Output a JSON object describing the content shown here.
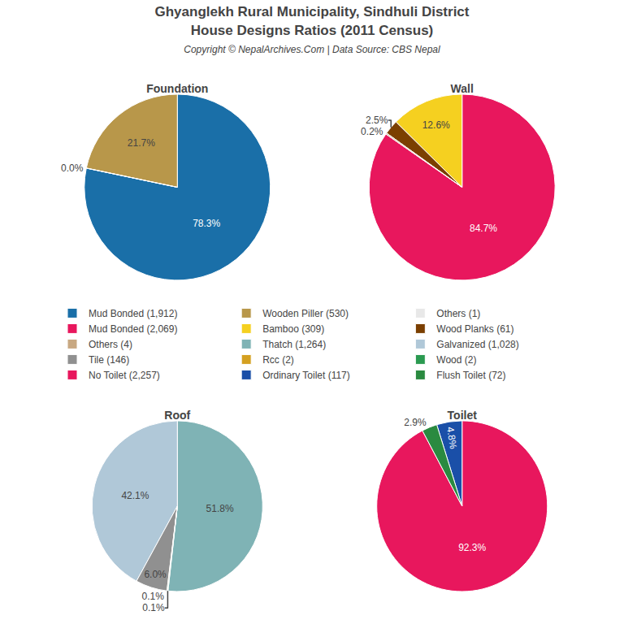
{
  "title": "Ghyanglekh Rural Municipality, Sindhuli District\nHouse Designs Ratios (2011 Census)",
  "subtitle": "Copyright © NepalArchives.Com | Data Source: CBS Nepal",
  "legend": "center",
  "chart_data": [
    {
      "type": "pie",
      "title": "Foundation",
      "categories": [
        "Mud Bonded (1,912)",
        "Wooden Piller (530)",
        "Others (1)"
      ],
      "values": [
        78.3,
        21.7,
        0.01
      ],
      "value_labels": [
        "78.3%",
        "21.7%",
        "0.0%"
      ],
      "colors": [
        "#1a6fa8",
        "#b8974a",
        "#e8e8e8"
      ],
      "data_labels": true
    },
    {
      "type": "pie",
      "title": "Wall",
      "categories": [
        "Mud Bonded (2,069)",
        "Bamboo (309)",
        "Wood Planks (61)",
        "Others (4)"
      ],
      "values": [
        84.7,
        12.6,
        2.5,
        0.2
      ],
      "value_labels": [
        "84.7%",
        "12.6%",
        "2.5%",
        "0.2%"
      ],
      "colors": [
        "#e8175d",
        "#f5d020",
        "#7b3f00",
        "#c8a882"
      ],
      "data_labels": true
    },
    {
      "type": "pie",
      "title": "Roof",
      "categories": [
        "Thatch (1,264)",
        "Galvanized (1,028)",
        "Tile (146)",
        "Rcc (2)",
        "Wood (2)"
      ],
      "values": [
        51.8,
        42.1,
        6.0,
        0.1,
        0.1
      ],
      "value_labels": [
        "51.8%",
        "42.1%",
        "6.0%",
        "0.1%",
        "0.1%"
      ],
      "colors": [
        "#7fb3b5",
        "#b0c8d8",
        "#909090",
        "#d4a020",
        "#2a9a50"
      ],
      "data_labels": true
    },
    {
      "type": "pie",
      "title": "Toilet",
      "categories": [
        "No Toilet (2,257)",
        "Ordinary Toilet (117)",
        "Flush Toilet (72)"
      ],
      "values": [
        92.3,
        4.8,
        2.9
      ],
      "value_labels": [
        "92.3%",
        "4.8%",
        "2.9%"
      ],
      "colors": [
        "#e8175d",
        "#1a4fa8",
        "#2a8a40"
      ],
      "data_labels": true
    }
  ]
}
